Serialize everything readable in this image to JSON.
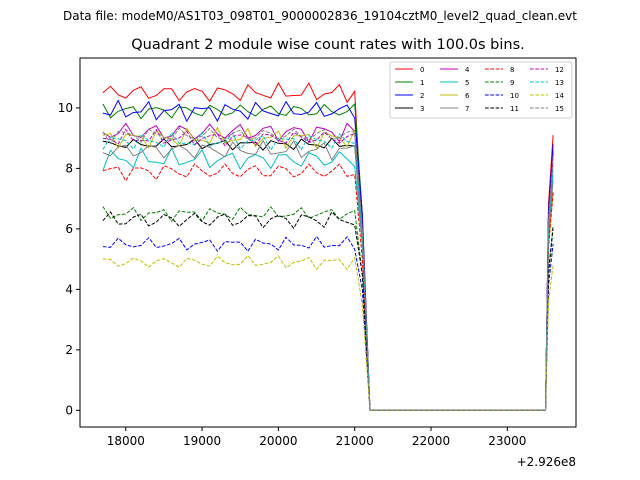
{
  "figure": {
    "suptitle": "Data file: modeM0/AS1T03_098T01_9000002836_19104cztM0_level2_quad_clean.evt"
  },
  "chart_data": {
    "type": "line",
    "title": "Quadrant 2 module wise count rates with 100.0s bins.",
    "xlabel": "",
    "ylabel": "",
    "x_offset_label": "+2.926e8",
    "xlim": [
      17400,
      23900
    ],
    "ylim": [
      -0.55,
      11.65
    ],
    "x_ticks": [
      18000,
      19000,
      20000,
      21000,
      22000,
      23000
    ],
    "y_ticks": [
      0,
      2,
      4,
      6,
      8,
      10
    ],
    "x_tick_labels": [
      "18000",
      "19000",
      "20000",
      "21000",
      "22000",
      "23000"
    ],
    "y_tick_labels": [
      "0",
      "2",
      "4",
      "6",
      "8",
      "10"
    ],
    "grid": false,
    "legend_position": "top-right",
    "legend_columns": 4,
    "x_segments": [
      {
        "start": 17700,
        "end": 21000,
        "step": 100
      },
      {
        "start": 21100,
        "end": 23600,
        "step": 100
      }
    ],
    "series": [
      {
        "name": "0",
        "color": "#ff0000",
        "dash": "solid",
        "level": 10.5,
        "amp": 0.35,
        "gap": [
          6.0,
          0.0,
          9.1
        ]
      },
      {
        "name": "1",
        "color": "#008000",
        "dash": "solid",
        "level": 9.9,
        "amp": 0.3,
        "gap": [
          6.5,
          0.0,
          8.6
        ]
      },
      {
        "name": "2",
        "color": "#0000ff",
        "dash": "solid",
        "level": 9.9,
        "amp": 0.35,
        "gap": [
          6.5,
          0.0,
          8.8
        ]
      },
      {
        "name": "3",
        "color": "#000000",
        "dash": "solid",
        "level": 8.8,
        "amp": 0.2,
        "gap": [
          6.0,
          0.0,
          8.5
        ]
      },
      {
        "name": "4",
        "color": "#bf00bf",
        "dash": "solid",
        "level": 9.2,
        "amp": 0.4,
        "gap": [
          6.0,
          0.0,
          8.5
        ]
      },
      {
        "name": "5",
        "color": "#00bfbf",
        "dash": "solid",
        "level": 8.3,
        "amp": 0.4,
        "gap": [
          5.5,
          0.0,
          7.8
        ]
      },
      {
        "name": "6",
        "color": "#bfbf00",
        "dash": "solid",
        "level": 9.0,
        "amp": 0.35,
        "gap": [
          5.8,
          0.0,
          7.2
        ]
      },
      {
        "name": "7",
        "color": "#808080",
        "dash": "solid",
        "level": 8.6,
        "amp": 0.35,
        "gap": [
          5.5,
          0.0,
          7.6
        ]
      },
      {
        "name": "8",
        "color": "#ff0000",
        "dash": "dashed",
        "level": 7.9,
        "amp": 0.35,
        "gap": [
          5.0,
          0.0,
          7.2
        ]
      },
      {
        "name": "9",
        "color": "#008000",
        "dash": "dashed",
        "level": 6.5,
        "amp": 0.25,
        "gap": [
          4.5,
          0.0,
          6.0
        ]
      },
      {
        "name": "10",
        "color": "#0000ff",
        "dash": "dashed",
        "level": 5.5,
        "amp": 0.25,
        "gap": [
          4.0,
          0.0,
          5.5
        ]
      },
      {
        "name": "11",
        "color": "#000000",
        "dash": "dashed",
        "level": 6.3,
        "amp": 0.35,
        "gap": [
          4.5,
          0.0,
          6.1
        ]
      },
      {
        "name": "12",
        "color": "#bf00bf",
        "dash": "dashed",
        "level": 9.0,
        "amp": 0.3,
        "gap": [
          6.0,
          0.0,
          8.2
        ]
      },
      {
        "name": "13",
        "color": "#00bfbf",
        "dash": "dashed",
        "level": 8.9,
        "amp": 0.3,
        "gap": [
          5.8,
          0.0,
          8.0
        ]
      },
      {
        "name": "14",
        "color": "#bfbf00",
        "dash": "dashed",
        "level": 4.9,
        "amp": 0.25,
        "gap": [
          3.5,
          0.0,
          4.8
        ]
      },
      {
        "name": "15",
        "color": "#808080",
        "dash": "dashed",
        "level": 9.1,
        "amp": 0.3,
        "gap": [
          6.0,
          0.0,
          8.4
        ]
      }
    ]
  }
}
